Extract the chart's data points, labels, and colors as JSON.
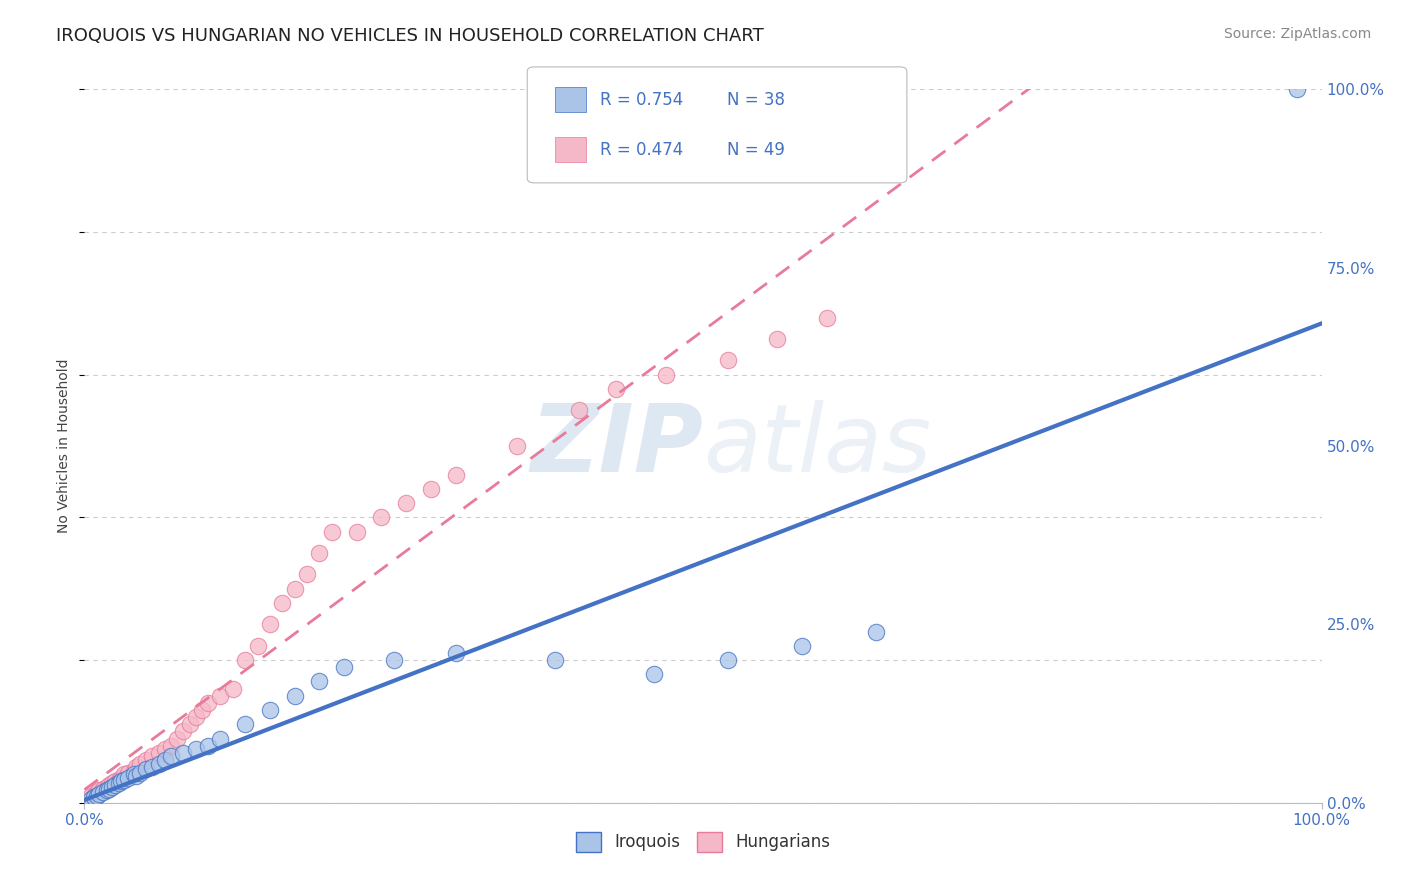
{
  "title": "IROQUOIS VS HUNGARIAN NO VEHICLES IN HOUSEHOLD CORRELATION CHART",
  "source": "Source: ZipAtlas.com",
  "ylabel": "No Vehicles in Household",
  "xlim": [
    0,
    1.0
  ],
  "ylim": [
    0,
    1.0
  ],
  "ytick_vals": [
    0.0,
    0.25,
    0.5,
    0.75,
    1.0
  ],
  "ytick_labels": [
    "0.0%",
    "25.0%",
    "50.0%",
    "75.0%",
    "100.0%"
  ],
  "grid_color": "#cccccc",
  "background_color": "#ffffff",
  "iroquois_color": "#aac4e8",
  "hungarian_color": "#f5b8c8",
  "iroquois_line_color": "#4472c4",
  "hungarian_line_color": "#e87a9a",
  "R_iroquois": 0.754,
  "N_iroquois": 38,
  "R_hungarian": 0.474,
  "N_hungarian": 49,
  "legend_label_iroquois": "Iroquois",
  "legend_label_hungarian": "Hungarians",
  "watermark_zip": "ZIP",
  "watermark_atlas": "atlas",
  "iroquois_x": [
    0.005,
    0.008,
    0.01,
    0.012,
    0.015,
    0.018,
    0.02,
    0.022,
    0.025,
    0.028,
    0.03,
    0.032,
    0.035,
    0.04,
    0.042,
    0.045,
    0.05,
    0.055,
    0.06,
    0.065,
    0.07,
    0.08,
    0.09,
    0.1,
    0.11,
    0.13,
    0.15,
    0.17,
    0.19,
    0.21,
    0.25,
    0.3,
    0.38,
    0.46,
    0.52,
    0.58,
    0.64,
    0.98
  ],
  "iroquois_y": [
    0.005,
    0.008,
    0.01,
    0.012,
    0.015,
    0.018,
    0.02,
    0.022,
    0.025,
    0.028,
    0.03,
    0.032,
    0.035,
    0.04,
    0.038,
    0.042,
    0.048,
    0.05,
    0.055,
    0.06,
    0.065,
    0.07,
    0.075,
    0.08,
    0.09,
    0.11,
    0.13,
    0.15,
    0.17,
    0.19,
    0.2,
    0.21,
    0.2,
    0.18,
    0.2,
    0.22,
    0.24,
    1.0
  ],
  "hungarian_x": [
    0.005,
    0.008,
    0.01,
    0.012,
    0.015,
    0.018,
    0.02,
    0.022,
    0.025,
    0.028,
    0.03,
    0.032,
    0.035,
    0.04,
    0.042,
    0.045,
    0.05,
    0.055,
    0.06,
    0.065,
    0.07,
    0.075,
    0.08,
    0.085,
    0.09,
    0.095,
    0.1,
    0.11,
    0.12,
    0.13,
    0.14,
    0.15,
    0.16,
    0.17,
    0.18,
    0.19,
    0.2,
    0.22,
    0.24,
    0.26,
    0.28,
    0.3,
    0.35,
    0.4,
    0.43,
    0.47,
    0.52,
    0.56,
    0.6
  ],
  "hungarian_y": [
    0.01,
    0.01,
    0.015,
    0.018,
    0.02,
    0.022,
    0.025,
    0.028,
    0.03,
    0.032,
    0.035,
    0.04,
    0.042,
    0.045,
    0.05,
    0.055,
    0.06,
    0.065,
    0.07,
    0.075,
    0.08,
    0.09,
    0.1,
    0.11,
    0.12,
    0.13,
    0.14,
    0.15,
    0.16,
    0.2,
    0.22,
    0.25,
    0.28,
    0.3,
    0.32,
    0.35,
    0.38,
    0.38,
    0.4,
    0.42,
    0.44,
    0.46,
    0.5,
    0.55,
    0.58,
    0.6,
    0.62,
    0.65,
    0.68
  ],
  "iroquois_line": [
    0.0,
    0.62
  ],
  "hungarian_line": [
    0.0,
    0.52
  ],
  "title_fontsize": 13,
  "source_fontsize": 10,
  "tick_fontsize": 11,
  "ylabel_fontsize": 10
}
